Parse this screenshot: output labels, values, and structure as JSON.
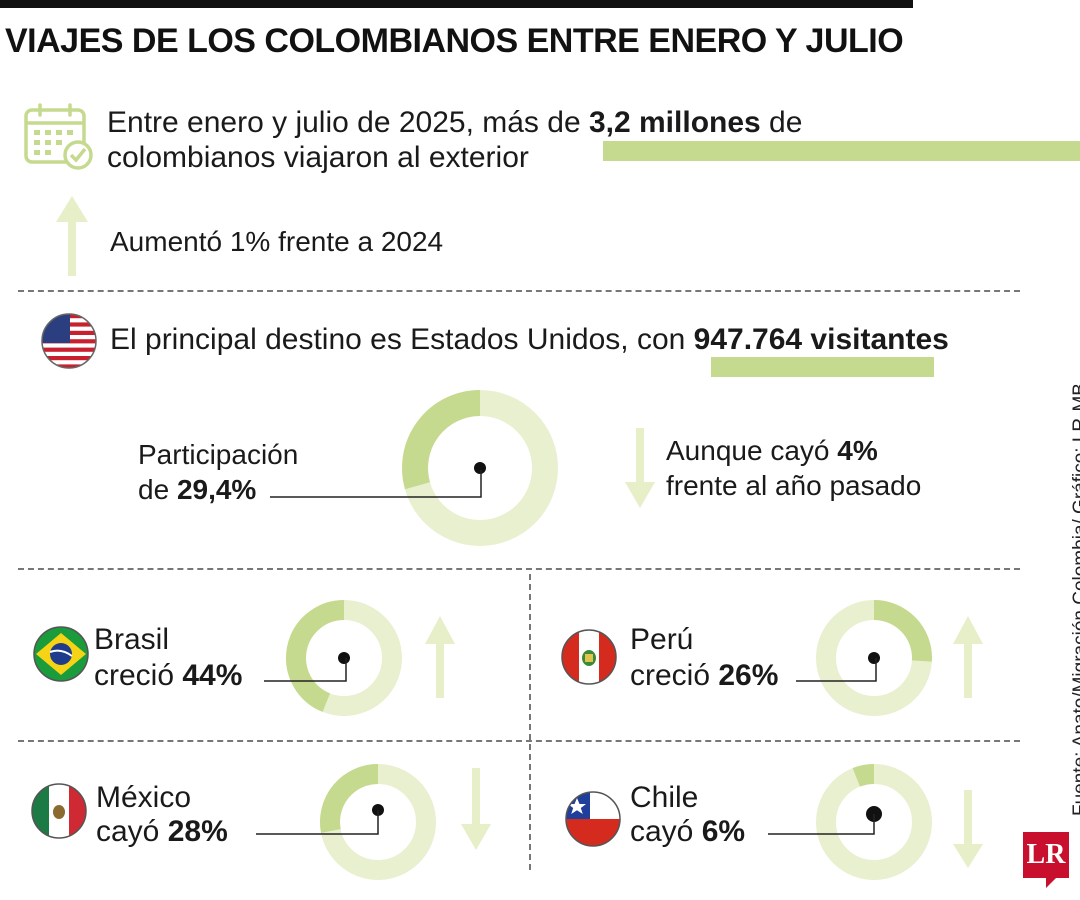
{
  "title": "VIAJES DE LOS COLOMBIANOS ENTRE ENERO Y JULIO",
  "headline": {
    "line1_pre": "Entre enero y julio de 2025, más de ",
    "line1_bold": "3,2 millones",
    "line1_post": " de",
    "line2": "colombianos viajaron al exterior"
  },
  "increase": "Aumentó 1% frente a 2024",
  "main_destination": {
    "text_pre": "El principal destino es Estados Unidos, con ",
    "text_bold": "947.764 visitantes"
  },
  "share": {
    "line1": "Participación",
    "line2_pre": "de ",
    "line2_bold": "29,4%"
  },
  "us_change": {
    "line1_pre": "Aunque cayó ",
    "line1_bold": "4%",
    "line2": "frente al año pasado"
  },
  "countries": [
    {
      "name": "Brasil",
      "verb": "creció",
      "value_label": "44%"
    },
    {
      "name": "Perú",
      "verb": "creció",
      "value_label": "26%"
    },
    {
      "name": "México",
      "verb": "cayó",
      "value_label": "28%"
    },
    {
      "name": "Chile",
      "verb": "cayó",
      "value_label": "6%"
    }
  ],
  "source": "Fuente: Anato/Migración Colombia/ Gráfico: LR-MB",
  "logo": "LR",
  "colors": {
    "ring_light": "#e9f0cf",
    "ring_dark": "#c5da8e",
    "arrow": "#e6efc8",
    "highlight": "#c5da8e",
    "text": "#1a1a1a"
  },
  "chart_data": [
    {
      "type": "pie",
      "name": "Estados Unidos",
      "values": [
        29.4
      ],
      "unit": "%",
      "change": -4
    },
    {
      "type": "pie",
      "name": "Brasil",
      "values": [
        44
      ],
      "unit": "%",
      "direction": "up"
    },
    {
      "type": "pie",
      "name": "Perú",
      "values": [
        26
      ],
      "unit": "%",
      "direction": "up"
    },
    {
      "type": "pie",
      "name": "México",
      "values": [
        28
      ],
      "unit": "%",
      "direction": "down"
    },
    {
      "type": "pie",
      "name": "Chile",
      "values": [
        6
      ],
      "unit": "%",
      "direction": "down"
    }
  ]
}
